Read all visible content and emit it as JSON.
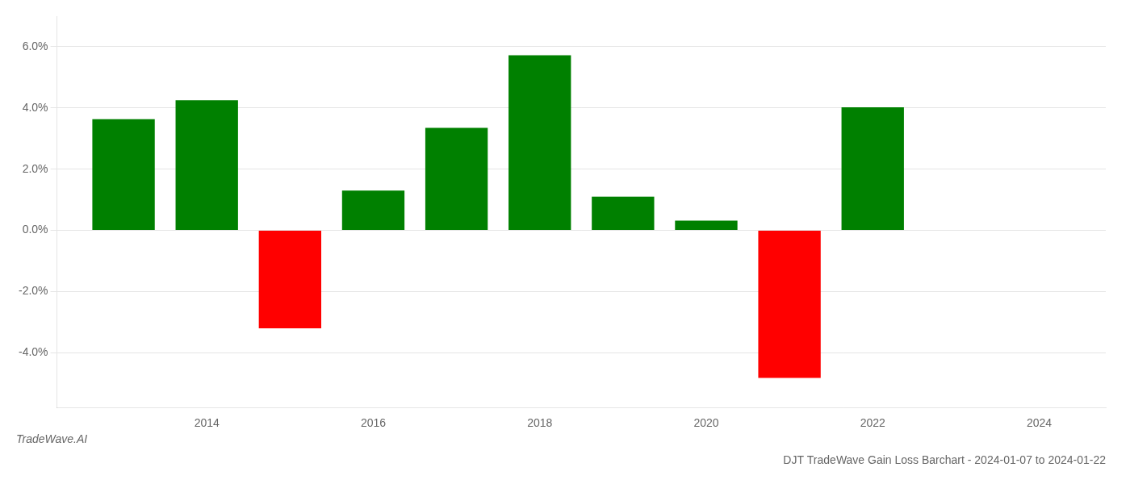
{
  "chart_data": {
    "type": "bar",
    "title": "DJT TradeWave Gain Loss Barchart - 2024-01-07 to 2024-01-22",
    "annotations": [
      "TradeWave.AI"
    ],
    "x": [
      2013,
      2014,
      2015,
      2016,
      2017,
      2018,
      2019,
      2020,
      2021,
      2022,
      2023
    ],
    "values": [
      3.63,
      4.25,
      -3.2,
      1.3,
      3.35,
      5.72,
      1.1,
      0.32,
      -4.82,
      4.02,
      0.0
    ],
    "colors": [
      "#008000",
      "#008000",
      "#ff0000",
      "#008000",
      "#008000",
      "#008000",
      "#008000",
      "#008000",
      "#ff0000",
      "#008000",
      "#008000"
    ],
    "xlim": [
      2012.2,
      2024.8
    ],
    "xticks": [
      2014,
      2016,
      2018,
      2020,
      2022,
      2024
    ],
    "ylim": [
      -5.8,
      7.0
    ],
    "yticks": [
      {
        "value": -4.0,
        "label": "-4.0%"
      },
      {
        "value": -2.0,
        "label": "-2.0%"
      },
      {
        "value": 0.0,
        "label": "0.0%"
      },
      {
        "value": 2.0,
        "label": "2.0%"
      },
      {
        "value": 4.0,
        "label": "4.0%"
      },
      {
        "value": 6.0,
        "label": "6.0%"
      }
    ],
    "grid": "y"
  }
}
